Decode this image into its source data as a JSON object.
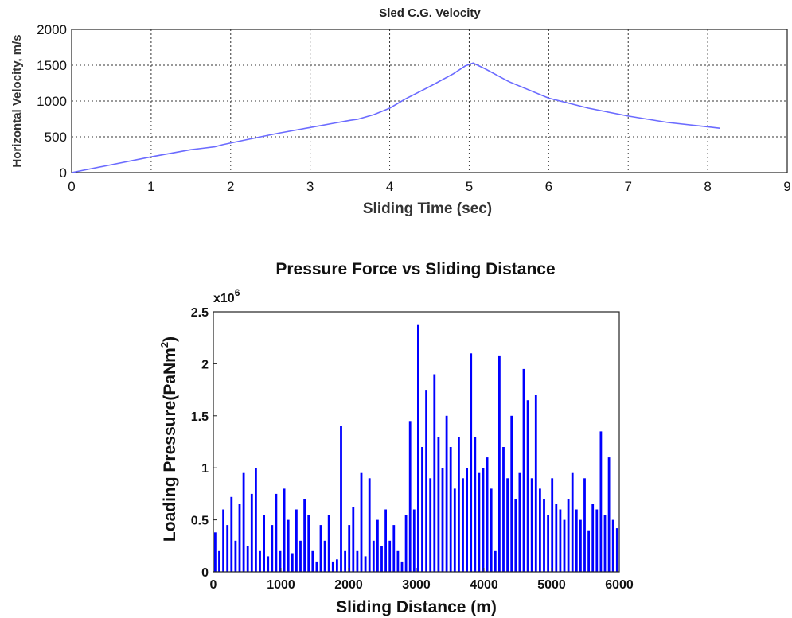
{
  "chart_data": [
    {
      "type": "line",
      "title": "Sled C.G. Velocity",
      "xlabel": "Sliding Time (sec)",
      "ylabel": "Horizontal Velocity, m/s",
      "xlim": [
        0,
        9
      ],
      "ylim": [
        0,
        2000
      ],
      "xticks": [
        "0",
        "1",
        "2",
        "3",
        "4",
        "5",
        "6",
        "7",
        "8",
        "9"
      ],
      "yticks": [
        "0",
        "500",
        "1000",
        "1500",
        "2000"
      ],
      "grid": true,
      "color": "#6b6bff",
      "series": [
        {
          "x": [
            0,
            0.5,
            1,
            1.5,
            1.8,
            1.9,
            2.2,
            2.6,
            3,
            3.3,
            3.5,
            3.6,
            3.8,
            4,
            4.2,
            4.5,
            4.8,
            4.95,
            5.05,
            5.2,
            5.5,
            6,
            6.5,
            7,
            7.5,
            8,
            8.15
          ],
          "y": [
            0,
            110,
            220,
            320,
            360,
            390,
            460,
            550,
            630,
            690,
            730,
            745,
            810,
            900,
            1030,
            1200,
            1380,
            1490,
            1530,
            1450,
            1270,
            1040,
            900,
            790,
            700,
            640,
            620
          ]
        }
      ]
    },
    {
      "type": "bar",
      "title": "Pressure Force vs Sliding Distance",
      "xlabel": "Sliding Distance (m)",
      "ylabel": "Loading Pressure(PaNm",
      "ylabel_sup": "2",
      "ylabel_close": ")",
      "y_multiplier_base": "x10",
      "y_multiplier_exp": "6",
      "xlim": [
        0,
        6000
      ],
      "ylim": [
        0,
        2.5
      ],
      "xticks": [
        "0",
        "1000",
        "2000",
        "3000",
        "4000",
        "5000",
        "6000"
      ],
      "yticks": [
        "0",
        "0.5",
        "1",
        "1.5",
        "2",
        "2.5"
      ],
      "color": "#0000ff",
      "x": [
        0,
        60,
        120,
        180,
        240,
        300,
        360,
        420,
        480,
        540,
        600,
        660,
        720,
        780,
        840,
        900,
        960,
        1020,
        1080,
        1140,
        1200,
        1260,
        1320,
        1380,
        1440,
        1500,
        1560,
        1620,
        1680,
        1740,
        1800,
        1860,
        1920,
        1980,
        2040,
        2100,
        2160,
        2220,
        2280,
        2340,
        2400,
        2460,
        2520,
        2580,
        2640,
        2700,
        2760,
        2820,
        2880,
        2940,
        3000,
        3060,
        3120,
        3180,
        3240,
        3300,
        3360,
        3420,
        3480,
        3540,
        3600,
        3660,
        3720,
        3780,
        3840,
        3900,
        3960,
        4020,
        4080,
        4140,
        4200,
        4260,
        4320,
        4380,
        4440,
        4500,
        4560,
        4620,
        4680,
        4740,
        4800,
        4860,
        4920,
        4980,
        5040,
        5100,
        5160,
        5220,
        5280,
        5340,
        5400,
        5460,
        5520,
        5580,
        5640,
        5700,
        5760,
        5820,
        5880,
        5940
      ],
      "values": [
        0.38,
        0.2,
        0.6,
        0.45,
        0.72,
        0.3,
        0.65,
        0.95,
        0.25,
        0.75,
        1.0,
        0.2,
        0.55,
        0.15,
        0.45,
        0.75,
        0.2,
        0.8,
        0.5,
        0.18,
        0.6,
        0.3,
        0.7,
        0.55,
        0.2,
        0.1,
        0.45,
        0.3,
        0.55,
        0.1,
        0.12,
        1.4,
        0.2,
        0.45,
        0.62,
        0.2,
        0.95,
        0.15,
        0.9,
        0.3,
        0.5,
        0.25,
        0.6,
        0.3,
        0.45,
        0.2,
        0.1,
        0.55,
        1.45,
        0.6,
        2.38,
        1.2,
        1.75,
        0.9,
        1.9,
        1.3,
        1.0,
        1.5,
        1.2,
        0.8,
        1.3,
        0.9,
        1.0,
        2.1,
        1.3,
        0.95,
        1.0,
        1.1,
        0.8,
        0.2,
        2.08,
        1.2,
        0.9,
        1.5,
        0.7,
        0.95,
        1.95,
        1.65,
        0.9,
        1.7,
        0.8,
        0.7,
        0.55,
        0.9,
        0.65,
        0.6,
        0.5,
        0.7,
        0.95,
        0.6,
        0.5,
        0.9,
        0.4,
        0.65,
        0.6,
        1.35,
        0.55,
        1.1,
        0.5,
        0.42
      ]
    }
  ]
}
